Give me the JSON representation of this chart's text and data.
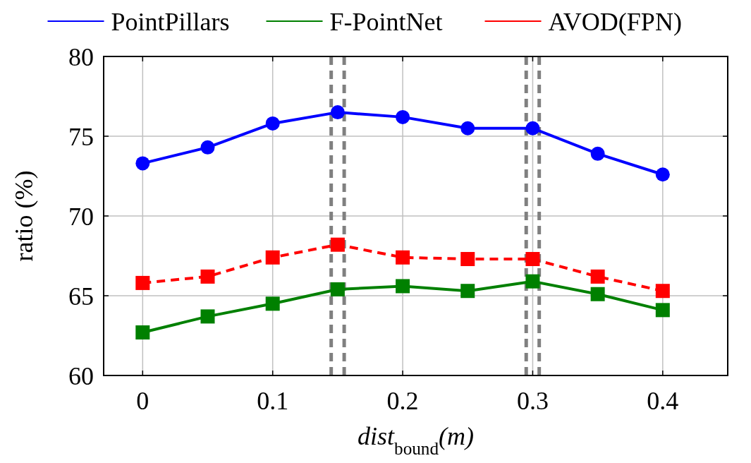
{
  "chart_data": {
    "type": "line",
    "xlabel": "dist$_{bound}$(m)",
    "ylabel": "ratio (%)",
    "x": [
      0,
      0.05,
      0.1,
      0.15,
      0.2,
      0.25,
      0.3,
      0.35,
      0.4
    ],
    "series": [
      {
        "name": "PointPillars",
        "color": "#0000ff",
        "marker": "circle",
        "line_style": "solid",
        "values": [
          73.3,
          74.3,
          75.8,
          76.5,
          76.2,
          75.5,
          75.5,
          73.9,
          72.6
        ]
      },
      {
        "name": "F-PointNet",
        "color": "#008000",
        "marker": "square",
        "line_style": "solid",
        "values": [
          62.7,
          63.7,
          64.5,
          65.4,
          65.6,
          65.3,
          65.9,
          65.1,
          64.1
        ]
      },
      {
        "name": "AVOD(FPN)",
        "color": "#ff0000",
        "marker": "square",
        "line_style": "dashed",
        "values": [
          65.8,
          66.2,
          67.4,
          68.2,
          67.4,
          67.3,
          67.3,
          66.2,
          65.3
        ]
      }
    ],
    "xlim": [
      -0.03,
      0.45
    ],
    "ylim": [
      60,
      80
    ],
    "xticks": [
      0,
      0.1,
      0.2,
      0.3,
      0.4
    ],
    "yticks": [
      60,
      65,
      70,
      75,
      80
    ],
    "grid": true,
    "legend": "top",
    "ref_lines": [
      {
        "axis": "x",
        "value": 0.145,
        "color": "#808080",
        "line_style": "dashed"
      },
      {
        "axis": "x",
        "value": 0.155,
        "color": "#808080",
        "line_style": "dashed"
      },
      {
        "axis": "x",
        "value": 0.295,
        "color": "#808080",
        "line_style": "dashed"
      },
      {
        "axis": "x",
        "value": 0.305,
        "color": "#808080",
        "line_style": "dashed"
      }
    ]
  }
}
